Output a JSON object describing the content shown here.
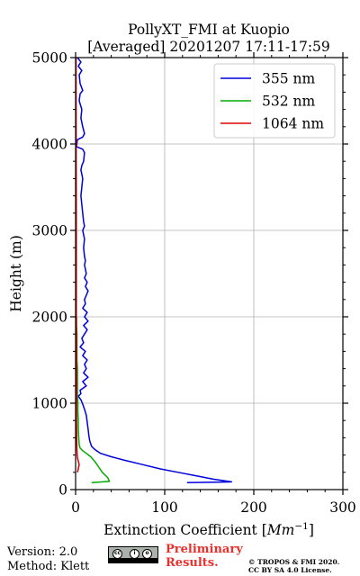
{
  "chart_data": {
    "type": "line",
    "title": "PollyXT_FMI at Kuopio",
    "subtitle": "[Averaged] 20201207 17:11-17:59",
    "xlabel": "Extinction Coefficient [",
    "xlabel_unit": "Mm",
    "xlabel_exp": "−1",
    "xlabel_close": "]",
    "ylabel": "Height (m)",
    "xlim": [
      0,
      300
    ],
    "ylim": [
      0,
      5000
    ],
    "x_ticks": [
      "0",
      "100",
      "200",
      "300"
    ],
    "y_ticks": [
      "0",
      "1000",
      "2000",
      "3000",
      "4000",
      "5000"
    ],
    "grid": true,
    "legend_position": "top-right",
    "series": [
      {
        "name": "355 nm",
        "color": "#0000dd",
        "points": [
          [
            125,
            80
          ],
          [
            175,
            90
          ],
          [
            155,
            120
          ],
          [
            135,
            160
          ],
          [
            115,
            200
          ],
          [
            95,
            240
          ],
          [
            75,
            290
          ],
          [
            55,
            340
          ],
          [
            40,
            380
          ],
          [
            28,
            420
          ],
          [
            22,
            460
          ],
          [
            18,
            500
          ],
          [
            16,
            560
          ],
          [
            15,
            620
          ],
          [
            14,
            700
          ],
          [
            13,
            780
          ],
          [
            12,
            860
          ],
          [
            10,
            930
          ],
          [
            8,
            990
          ],
          [
            6,
            1040
          ],
          [
            3,
            1080
          ],
          [
            6,
            1110
          ],
          [
            5,
            1150
          ],
          [
            12,
            1200
          ],
          [
            8,
            1250
          ],
          [
            14,
            1300
          ],
          [
            9,
            1350
          ],
          [
            12,
            1400
          ],
          [
            10,
            1450
          ],
          [
            13,
            1500
          ],
          [
            8,
            1550
          ],
          [
            11,
            1600
          ],
          [
            5,
            1650
          ],
          [
            9,
            1700
          ],
          [
            7,
            1750
          ],
          [
            10,
            1800
          ],
          [
            13,
            1850
          ],
          [
            9,
            1900
          ],
          [
            14,
            1950
          ],
          [
            10,
            2000
          ],
          [
            13,
            2050
          ],
          [
            8,
            2100
          ],
          [
            11,
            2150
          ],
          [
            10,
            2200
          ],
          [
            12,
            2250
          ],
          [
            14,
            2300
          ],
          [
            11,
            2350
          ],
          [
            13,
            2400
          ],
          [
            10,
            2450
          ],
          [
            12,
            2500
          ],
          [
            11,
            2550
          ],
          [
            10,
            2600
          ],
          [
            11,
            2650
          ],
          [
            10,
            2700
          ],
          [
            9,
            2800
          ],
          [
            10,
            2900
          ],
          [
            9,
            2950
          ],
          [
            8,
            3000
          ],
          [
            10,
            3050
          ],
          [
            9,
            3100
          ],
          [
            8,
            3200
          ],
          [
            7,
            3300
          ],
          [
            6,
            3400
          ],
          [
            7,
            3500
          ],
          [
            8,
            3600
          ],
          [
            6,
            3700
          ],
          [
            7,
            3750
          ],
          [
            9,
            3800
          ],
          [
            10,
            3900
          ],
          [
            8,
            3940
          ],
          [
            1,
            3970
          ],
          [
            2,
            4050
          ],
          [
            8,
            4080
          ],
          [
            10,
            4120
          ],
          [
            8,
            4200
          ],
          [
            6,
            4300
          ],
          [
            7,
            4400
          ],
          [
            4,
            4500
          ],
          [
            5,
            4580
          ],
          [
            8,
            4620
          ],
          [
            5,
            4700
          ],
          [
            4,
            4800
          ],
          [
            7,
            4850
          ],
          [
            3,
            4900
          ],
          [
            6,
            4950
          ],
          [
            2,
            5000
          ]
        ]
      },
      {
        "name": "532 nm",
        "color": "#00aa00",
        "points": [
          [
            18,
            80
          ],
          [
            38,
            95
          ],
          [
            36,
            140
          ],
          [
            30,
            200
          ],
          [
            26,
            260
          ],
          [
            22,
            320
          ],
          [
            17,
            380
          ],
          [
            12,
            420
          ],
          [
            8,
            450
          ],
          [
            5,
            480
          ],
          [
            4,
            520
          ],
          [
            3.5,
            600
          ],
          [
            3,
            700
          ],
          [
            3,
            800
          ],
          [
            2.5,
            900
          ],
          [
            2.5,
            1000
          ],
          [
            2,
            1100
          ],
          [
            2,
            1200
          ],
          [
            2,
            1300
          ],
          [
            2,
            1400
          ],
          [
            1.5,
            1500
          ],
          [
            1.5,
            1600
          ],
          [
            1.5,
            1700
          ],
          [
            1.5,
            1800
          ],
          [
            1,
            1900
          ],
          [
            1,
            2000
          ]
        ]
      },
      {
        "name": "1064 nm",
        "color": "#dd0000",
        "points": [
          [
            2,
            200
          ],
          [
            3,
            240
          ],
          [
            4,
            290
          ],
          [
            3,
            330
          ],
          [
            2,
            370
          ],
          [
            1.5,
            450
          ],
          [
            1.2,
            600
          ],
          [
            1,
            800
          ],
          [
            1,
            1200
          ],
          [
            0.8,
            2000
          ],
          [
            0.8,
            3000
          ],
          [
            0.6,
            4000
          ],
          [
            0.5,
            5000
          ]
        ]
      }
    ]
  },
  "footer": {
    "version": "Version: 2.0",
    "method": "Method: Klett",
    "preliminary_line1": "Preliminary",
    "preliminary_line2": "Results.",
    "copyright_line1": "© TROPOS & FMI 2020.",
    "copyright_line2": "CC BY SA 4.0 License."
  },
  "license_badge": {
    "icons": [
      "cc",
      "by",
      "sa"
    ]
  }
}
